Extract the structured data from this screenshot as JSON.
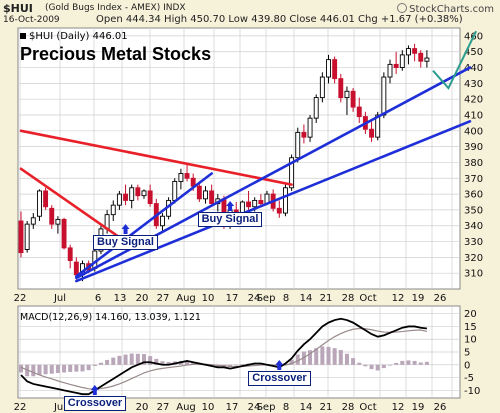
{
  "header": {
    "symbol": "$HUI",
    "description": "(Gold Bugs Index - AMEX) INDX",
    "brand": "StockCharts.com",
    "date": "16-Oct-2009",
    "ohlc": "Open 444.34 High 450.70 Low 439.80 Close 446.01 Chg +1.67 (+0.38%)",
    "legend": "$HUI (Daily) 446.01"
  },
  "colors": {
    "background": "#f6f1d9",
    "panel": "#ffffff",
    "grid": "#cfcfcf",
    "up_candle": "#000000",
    "down_candle": "#c8102e",
    "red_line": "#e8202a",
    "blue_line": "#1f2fd8",
    "teal_projection": "#2a9d8f",
    "macd_line": "#000000",
    "signal_line": "#9a8a8a",
    "histogram": "#b9a7b9"
  },
  "chart_data": [
    {
      "type": "candlestick",
      "title": "Precious Metal Stocks",
      "x_tick_labels": [
        "22",
        "Jul",
        "6",
        "13",
        "20",
        "27",
        "Aug",
        "10",
        "17",
        "24",
        "Sep",
        "8",
        "14",
        "21",
        "28",
        "Oct",
        "12",
        "19",
        "26"
      ],
      "y_ticks": [
        310,
        320,
        330,
        340,
        350,
        360,
        370,
        380,
        390,
        400,
        410,
        420,
        430,
        440,
        450,
        460
      ],
      "ylim": [
        300,
        465
      ],
      "grid": true,
      "candles": [
        {
          "o": 343,
          "h": 349,
          "l": 320,
          "c": 323
        },
        {
          "o": 325,
          "h": 343,
          "l": 323,
          "c": 341
        },
        {
          "o": 341,
          "h": 348,
          "l": 338,
          "c": 345
        },
        {
          "o": 346,
          "h": 363,
          "l": 343,
          "c": 362
        },
        {
          "o": 362,
          "h": 364,
          "l": 350,
          "c": 352
        },
        {
          "o": 351,
          "h": 353,
          "l": 338,
          "c": 341
        },
        {
          "o": 341,
          "h": 346,
          "l": 335,
          "c": 344
        },
        {
          "o": 344,
          "h": 345,
          "l": 325,
          "c": 326
        },
        {
          "o": 326,
          "h": 328,
          "l": 313,
          "c": 318
        },
        {
          "o": 317,
          "h": 320,
          "l": 306,
          "c": 309
        },
        {
          "o": 309,
          "h": 318,
          "l": 305,
          "c": 316
        },
        {
          "o": 316,
          "h": 318,
          "l": 310,
          "c": 312
        },
        {
          "o": 313,
          "h": 325,
          "l": 311,
          "c": 324
        },
        {
          "o": 324,
          "h": 340,
          "l": 322,
          "c": 338
        },
        {
          "o": 338,
          "h": 350,
          "l": 335,
          "c": 347
        },
        {
          "o": 347,
          "h": 356,
          "l": 343,
          "c": 353
        },
        {
          "o": 353,
          "h": 362,
          "l": 350,
          "c": 360
        },
        {
          "o": 360,
          "h": 366,
          "l": 353,
          "c": 356
        },
        {
          "o": 356,
          "h": 366,
          "l": 351,
          "c": 364
        },
        {
          "o": 364,
          "h": 366,
          "l": 356,
          "c": 359
        },
        {
          "o": 359,
          "h": 363,
          "l": 357,
          "c": 362
        },
        {
          "o": 362,
          "h": 366,
          "l": 352,
          "c": 354
        },
        {
          "o": 354,
          "h": 357,
          "l": 338,
          "c": 340
        },
        {
          "o": 340,
          "h": 348,
          "l": 337,
          "c": 346
        },
        {
          "o": 346,
          "h": 358,
          "l": 344,
          "c": 356
        },
        {
          "o": 356,
          "h": 370,
          "l": 354,
          "c": 368
        },
        {
          "o": 368,
          "h": 376,
          "l": 363,
          "c": 373
        },
        {
          "o": 373,
          "h": 379,
          "l": 368,
          "c": 370
        },
        {
          "o": 370,
          "h": 373,
          "l": 362,
          "c": 365
        },
        {
          "o": 365,
          "h": 368,
          "l": 355,
          "c": 357
        },
        {
          "o": 357,
          "h": 365,
          "l": 354,
          "c": 362
        },
        {
          "o": 362,
          "h": 366,
          "l": 352,
          "c": 354
        },
        {
          "o": 354,
          "h": 360,
          "l": 349,
          "c": 357
        },
        {
          "o": 357,
          "h": 359,
          "l": 338,
          "c": 340
        },
        {
          "o": 340,
          "h": 352,
          "l": 338,
          "c": 350
        },
        {
          "o": 350,
          "h": 355,
          "l": 344,
          "c": 347
        },
        {
          "o": 347,
          "h": 356,
          "l": 346,
          "c": 355
        },
        {
          "o": 355,
          "h": 362,
          "l": 350,
          "c": 352
        },
        {
          "o": 352,
          "h": 358,
          "l": 349,
          "c": 356
        },
        {
          "o": 356,
          "h": 360,
          "l": 352,
          "c": 354
        },
        {
          "o": 354,
          "h": 362,
          "l": 353,
          "c": 360
        },
        {
          "o": 360,
          "h": 363,
          "l": 349,
          "c": 351
        },
        {
          "o": 351,
          "h": 356,
          "l": 345,
          "c": 348
        },
        {
          "o": 348,
          "h": 366,
          "l": 346,
          "c": 364
        },
        {
          "o": 364,
          "h": 385,
          "l": 362,
          "c": 383
        },
        {
          "o": 383,
          "h": 402,
          "l": 380,
          "c": 399
        },
        {
          "o": 399,
          "h": 404,
          "l": 392,
          "c": 396
        },
        {
          "o": 396,
          "h": 410,
          "l": 393,
          "c": 408
        },
        {
          "o": 408,
          "h": 423,
          "l": 405,
          "c": 421
        },
        {
          "o": 421,
          "h": 437,
          "l": 418,
          "c": 434
        },
        {
          "o": 434,
          "h": 448,
          "l": 430,
          "c": 445
        },
        {
          "o": 445,
          "h": 447,
          "l": 430,
          "c": 433
        },
        {
          "o": 433,
          "h": 436,
          "l": 418,
          "c": 421
        },
        {
          "o": 421,
          "h": 428,
          "l": 410,
          "c": 425
        },
        {
          "o": 425,
          "h": 427,
          "l": 412,
          "c": 415
        },
        {
          "o": 415,
          "h": 421,
          "l": 405,
          "c": 409
        },
        {
          "o": 409,
          "h": 412,
          "l": 398,
          "c": 401
        },
        {
          "o": 401,
          "h": 406,
          "l": 393,
          "c": 396
        },
        {
          "o": 396,
          "h": 412,
          "l": 394,
          "c": 410
        },
        {
          "o": 410,
          "h": 437,
          "l": 408,
          "c": 434
        },
        {
          "o": 434,
          "h": 445,
          "l": 430,
          "c": 442
        },
        {
          "o": 442,
          "h": 450,
          "l": 436,
          "c": 440
        },
        {
          "o": 440,
          "h": 451,
          "l": 438,
          "c": 448
        },
        {
          "o": 448,
          "h": 454,
          "l": 442,
          "c": 452
        },
        {
          "o": 452,
          "h": 455,
          "l": 444,
          "c": 449
        },
        {
          "o": 449,
          "h": 451,
          "l": 440,
          "c": 444
        },
        {
          "o": 444,
          "h": 451,
          "l": 440,
          "c": 446
        }
      ],
      "trendlines": [
        {
          "color": "red",
          "from": {
            "i": 0,
            "y": 376
          },
          "to": {
            "i": 17,
            "y": 330
          }
        },
        {
          "color": "red",
          "from": {
            "i": 0,
            "y": 400
          },
          "to": {
            "i": 44,
            "y": 366
          }
        },
        {
          "color": "blue",
          "from": {
            "i": 9,
            "y": 308
          },
          "to": {
            "i": 31,
            "y": 373
          }
        },
        {
          "color": "blue",
          "from": {
            "i": 9,
            "y": 307
          },
          "to": {
            "i": 73,
            "y": 440
          }
        },
        {
          "color": "blue",
          "from": {
            "i": 9,
            "y": 305
          },
          "to": {
            "i": 73,
            "y": 406
          }
        }
      ],
      "projection": [
        {
          "i": 67,
          "y": 438
        },
        {
          "i": 69.5,
          "y": 427
        },
        {
          "i": 74,
          "y": 463
        }
      ],
      "annotations": [
        {
          "text": "Buy Signal",
          "i": 17,
          "y": 337
        },
        {
          "text": "Buy Signal",
          "i": 34,
          "y": 349
        }
      ]
    },
    {
      "type": "macd",
      "title": "MACD(12,26,9) 14.160, 13.039, 1.121",
      "macd_value": "14.160",
      "signal_value": "13.039",
      "histogram_value": "1.121",
      "y_ticks": [
        -10,
        -5,
        0,
        5,
        10,
        15,
        20
      ],
      "ylim": [
        -13,
        23
      ],
      "x_tick_labels": [
        "22",
        "Jul",
        "6",
        "13",
        "20",
        "27",
        "Aug",
        "10",
        "17",
        "24",
        "Sep",
        "8",
        "14",
        "21",
        "28",
        "Oct",
        "12",
        "19",
        "26"
      ],
      "macd": [
        -4,
        -6.5,
        -7.5,
        -8,
        -8.5,
        -9,
        -9.5,
        -10,
        -10.5,
        -11,
        -11.5,
        -11.5,
        -10,
        -8.5,
        -7,
        -5.5,
        -4,
        -2.5,
        -1,
        0,
        1,
        1,
        0.5,
        0,
        0,
        0.5,
        1,
        1.5,
        1,
        0.5,
        0,
        -0.5,
        -1,
        -1,
        -1.5,
        -1,
        -0.5,
        0,
        0.5,
        0.5,
        0,
        -0.5,
        -1,
        0.5,
        2.5,
        5.5,
        8,
        10,
        12.5,
        15,
        16.5,
        17.5,
        18,
        17.5,
        16.5,
        15,
        13.5,
        12,
        11,
        11.5,
        12.5,
        13.5,
        14.5,
        15,
        15,
        14.5,
        14.2
      ],
      "signal": [
        -1,
        -2,
        -3,
        -4,
        -4.8,
        -5.5,
        -6.3,
        -7,
        -7.7,
        -8.3,
        -8.9,
        -9.4,
        -9.5,
        -9.3,
        -8.9,
        -8.3,
        -7.5,
        -6.5,
        -5.4,
        -4.3,
        -3.2,
        -2.4,
        -1.8,
        -1.4,
        -1.1,
        -0.8,
        -0.5,
        -0.1,
        0.2,
        0.3,
        0.2,
        0,
        -0.2,
        -0.4,
        -0.6,
        -0.7,
        -0.7,
        -0.5,
        -0.3,
        -0.1,
        0,
        -0.1,
        -0.3,
        -0.1,
        0.5,
        1.5,
        2.8,
        4.3,
        6,
        7.8,
        9.5,
        11,
        12.2,
        13.2,
        13.9,
        14.2,
        14.1,
        13.7,
        13.2,
        12.8,
        12.7,
        12.8,
        13,
        13.3,
        13.5,
        13.6,
        13.04
      ],
      "annotations": [
        {
          "text": "Crossover",
          "i": 12,
          "y": -11.5
        },
        {
          "text": "Crossover",
          "i": 42,
          "y": -1
        }
      ]
    }
  ]
}
